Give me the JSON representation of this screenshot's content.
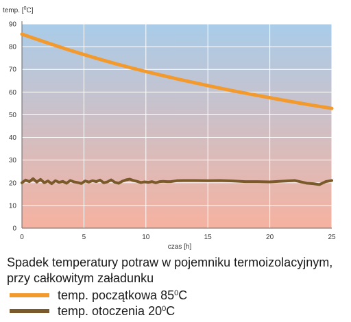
{
  "chart_data": {
    "type": "line",
    "title": "Spadek temperatury potraw w pojemniku termoizolacyjnym, przy całkowitym załadunku",
    "xlabel": "czas [h]",
    "ylabel_prefix": "temp. [",
    "ylabel_sup": "0",
    "ylabel_suffix": "C]",
    "xlim": [
      0,
      25
    ],
    "ylim": [
      0,
      90
    ],
    "xticks": [
      0,
      5,
      10,
      15,
      20,
      25
    ],
    "yticks": [
      0,
      10,
      20,
      30,
      40,
      50,
      60,
      70,
      80,
      90
    ],
    "grid": true,
    "background_gradient": {
      "top": "#a9cce9",
      "bottom": "#f6b2a0"
    },
    "series": [
      {
        "name_prefix": "temp. początkowa 85",
        "name_sup": "0",
        "name_suffix": "C",
        "color": "#f39a2e",
        "x": [
          0,
          2.5,
          5,
          7.5,
          10,
          12.5,
          15,
          17.5,
          20,
          22.5,
          25
        ],
        "y": [
          85.5,
          80.8,
          76.5,
          72.5,
          69.0,
          65.8,
          62.8,
          60.0,
          57.5,
          55.0,
          52.8
        ]
      },
      {
        "name_prefix": "temp. otoczenia 20",
        "name_sup": "0",
        "name_suffix": "C",
        "color": "#7a5a2a",
        "x": [
          0,
          0.3,
          0.6,
          0.9,
          1.2,
          1.5,
          1.8,
          2.1,
          2.4,
          2.7,
          3.0,
          3.3,
          3.6,
          3.9,
          4.2,
          4.5,
          4.8,
          5.1,
          5.4,
          5.7,
          6.0,
          6.3,
          6.6,
          6.9,
          7.2,
          7.5,
          7.8,
          8.1,
          8.4,
          8.7,
          9.0,
          9.3,
          9.6,
          9.9,
          10.2,
          10.5,
          10.8,
          11.1,
          11.4,
          11.7,
          12.0,
          12.5,
          13.0,
          14.0,
          15.0,
          16.0,
          17.0,
          18.0,
          19.0,
          20.0,
          21.0,
          22.0,
          23.0,
          23.5,
          24.0,
          24.5,
          25.0
        ],
        "y": [
          20.0,
          21.2,
          20.5,
          21.8,
          20.3,
          21.5,
          20.0,
          20.8,
          19.6,
          20.9,
          20.2,
          20.6,
          19.8,
          21.0,
          20.4,
          20.1,
          19.7,
          20.8,
          20.3,
          20.9,
          20.5,
          21.2,
          20.0,
          20.4,
          21.3,
          20.2,
          19.8,
          20.7,
          21.3,
          21.6,
          21.0,
          20.6,
          20.1,
          20.4,
          20.2,
          20.5,
          20.0,
          20.5,
          20.6,
          20.5,
          20.5,
          20.9,
          21.0,
          21.0,
          20.9,
          21.0,
          20.8,
          20.5,
          20.5,
          20.4,
          20.7,
          21.0,
          19.8,
          19.6,
          19.2,
          20.5,
          21.0
        ]
      }
    ]
  }
}
